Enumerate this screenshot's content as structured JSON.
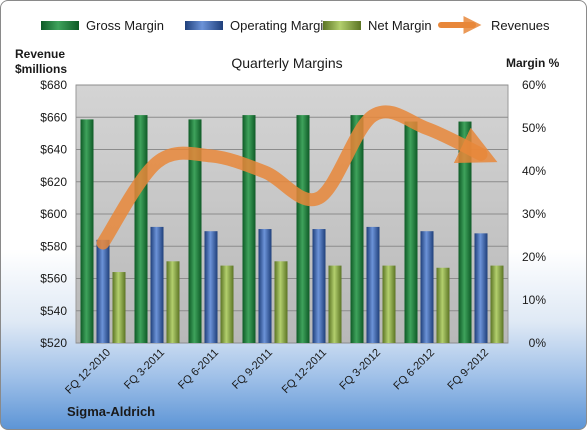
{
  "chart_data": {
    "type": "bar",
    "title": "Quarterly Margins",
    "left_axis_title_line1": "Revenue",
    "left_axis_title_line2": "$millions",
    "right_axis_title": "Margin %",
    "company": "Sigma-Aldrich",
    "categories": [
      "FQ 12-2010",
      "FQ 3-2011",
      "FQ 6-2011",
      "FQ 9-2011",
      "FQ 12-2011",
      "FQ 3-2012",
      "FQ 6-2012",
      "FQ 9-2012"
    ],
    "left_ylim": [
      520,
      680
    ],
    "left_ticks": [
      680,
      660,
      640,
      620,
      600,
      580,
      560,
      540,
      520
    ],
    "left_tick_labels": [
      "$680",
      "$660",
      "$640",
      "$620",
      "$600",
      "$580",
      "$560",
      "$540",
      "$520"
    ],
    "right_ylim": [
      0,
      60
    ],
    "right_ticks": [
      60,
      50,
      40,
      30,
      20,
      10,
      0
    ],
    "right_tick_labels": [
      "60%",
      "50%",
      "40%",
      "30%",
      "20%",
      "10%",
      "0%"
    ],
    "series": [
      {
        "name": "Gross Margin",
        "axis": "right",
        "values": [
          52.0,
          53.0,
          52.0,
          53.0,
          53.0,
          53.0,
          51.5,
          51.5
        ],
        "color": "#1f7a3a"
      },
      {
        "name": "Operating Margin",
        "axis": "right",
        "values": [
          24.0,
          27.0,
          26.0,
          26.5,
          26.5,
          27.0,
          26.0,
          25.5
        ],
        "color": "#3d66b0"
      },
      {
        "name": "Net Margin",
        "axis": "right",
        "values": [
          16.5,
          19.0,
          18.0,
          19.0,
          18.0,
          18.0,
          17.5,
          18.0
        ],
        "color": "#8aa847"
      },
      {
        "name": "Revenues",
        "axis": "left",
        "type": "line",
        "values": [
          582,
          632,
          636,
          626,
          610,
          661,
          653,
          637
        ],
        "color": "#e8873a"
      }
    ],
    "legend_position": "top",
    "grid": true
  }
}
